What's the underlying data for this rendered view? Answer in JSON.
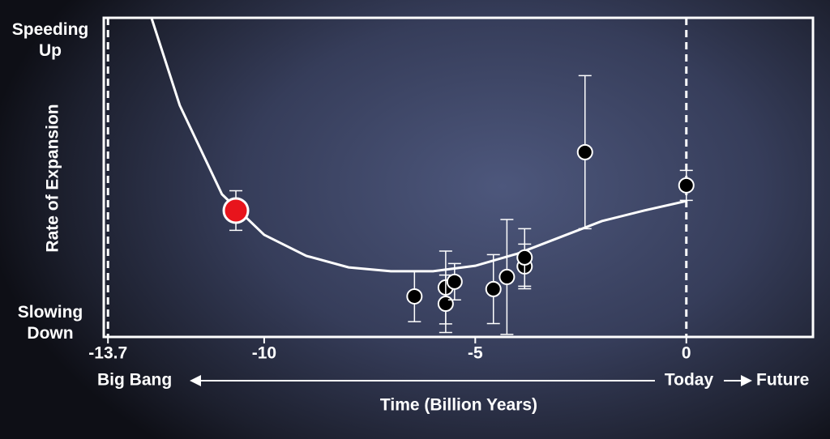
{
  "chart_data": {
    "type": "scatter",
    "y_label": "Rate of Expansion",
    "y_top_label": "Speeding Up",
    "y_bottom_label": "Slowing Down",
    "x_label": "Time (Billion Years)",
    "x_left_label": "Big Bang",
    "x_today_label": "Today",
    "x_right_label": "Future",
    "xlim": [
      -13.8,
      3
    ],
    "xticks": [
      -13.7,
      -10,
      -5,
      0
    ],
    "ylim": [
      0,
      10
    ],
    "curve": {
      "color": "#ffffff",
      "x": [
        -12.67,
        -12,
        -11,
        -10,
        -9,
        -8,
        -7,
        -6,
        -5,
        -4,
        -3,
        -2,
        -1,
        0
      ],
      "y": [
        10,
        7.26,
        4.47,
        3.2,
        2.54,
        2.18,
        2.06,
        2.06,
        2.23,
        2.61,
        3.12,
        3.63,
        3.96,
        4.26
      ]
    },
    "points": {
      "x": [
        -10.67,
        -6.44,
        -5.7,
        -5.7,
        -5.49,
        -4.57,
        -4.25,
        -3.83,
        -3.83,
        -2.4,
        0
      ],
      "y": [
        3.96,
        1.27,
        1.55,
        1.04,
        1.73,
        1.5,
        1.88,
        2.21,
        2.49,
        5.79,
        4.75
      ],
      "errors": [
        0.62,
        0.79,
        1.14,
        0.9,
        0.57,
        1.08,
        1.8,
        0.7,
        0.9,
        2.4,
        0.47
      ],
      "colors": [
        "#e8141c",
        "#000000",
        "#000000",
        "#000000",
        "#000000",
        "#000000",
        "#000000",
        "#000000",
        "#000000",
        "#000000",
        "#000000"
      ]
    }
  }
}
